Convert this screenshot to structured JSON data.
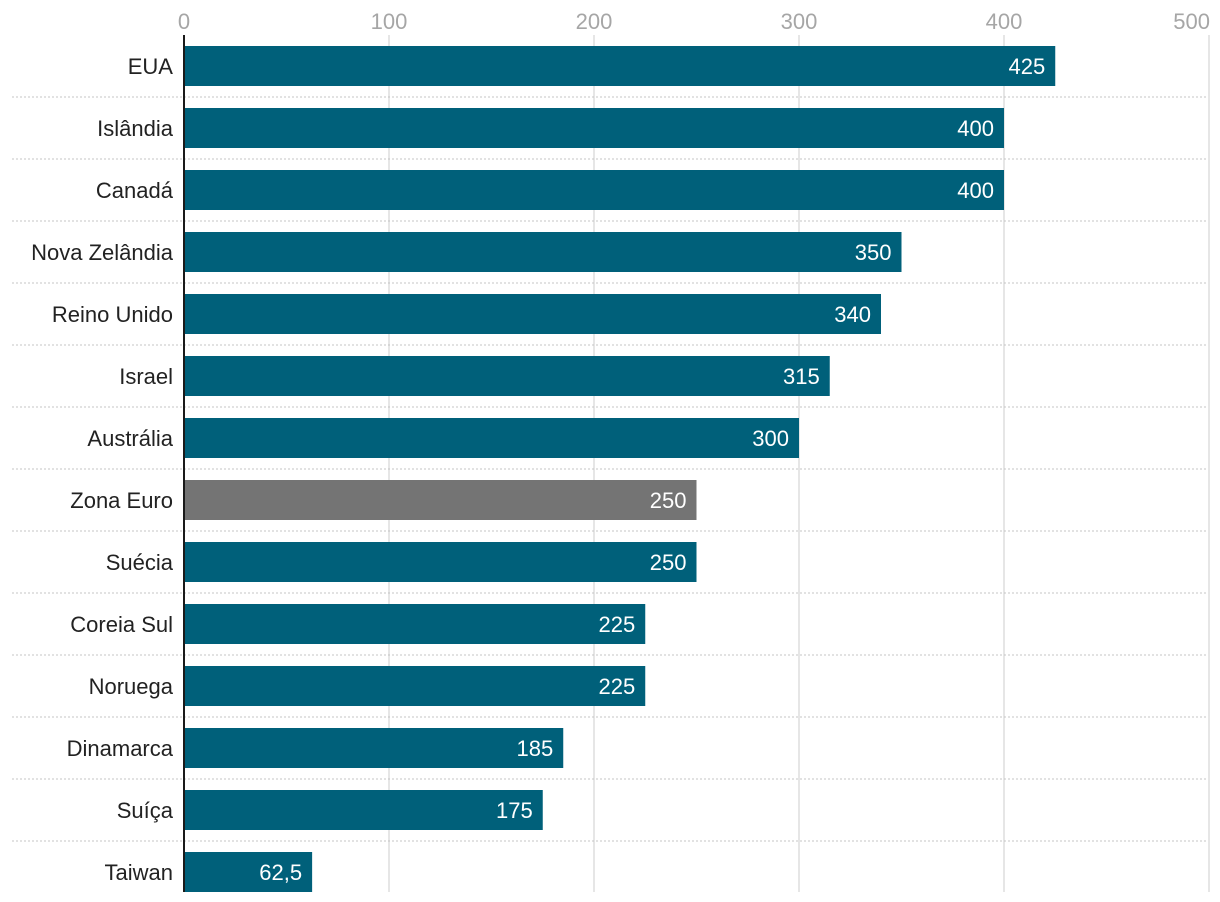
{
  "chart_data": {
    "type": "bar",
    "orientation": "horizontal",
    "title": "",
    "xlabel": "",
    "ylabel": "",
    "xlim": [
      0,
      500
    ],
    "x_ticks": [
      0,
      100,
      200,
      300,
      400,
      500
    ],
    "x_tick_labels": [
      "0",
      "100",
      "200",
      "300",
      "400",
      "500"
    ],
    "x_axis_position": "top",
    "grid": true,
    "categories": [
      "EUA",
      "Islândia",
      "Canadá",
      "Nova Zelândia",
      "Reino Unido",
      "Israel",
      "Austrália",
      "Zona Euro",
      "Suécia",
      "Coreia Sul",
      "Noruega",
      "Dinamarca",
      "Suíça",
      "Taiwan"
    ],
    "values": [
      425,
      400,
      400,
      350,
      340,
      315,
      300,
      250,
      250,
      225,
      225,
      185,
      175,
      62.5
    ],
    "value_labels": [
      "425",
      "400",
      "400",
      "350",
      "340",
      "315",
      "300",
      "250",
      "250",
      "225",
      "225",
      "185",
      "175",
      "62,5"
    ],
    "bar_colors": [
      "#00607a",
      "#00607a",
      "#00607a",
      "#00607a",
      "#00607a",
      "#00607a",
      "#00607a",
      "#747474",
      "#00607a",
      "#00607a",
      "#00607a",
      "#00607a",
      "#00607a",
      "#00607a"
    ],
    "colors": {
      "primary": "#00607a",
      "highlight": "#747474"
    }
  }
}
